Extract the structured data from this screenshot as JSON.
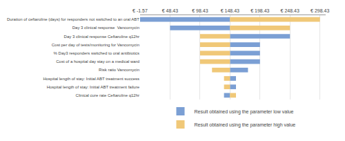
{
  "chart_data": {
    "type": "bar",
    "orientation": "horizontal",
    "categories": [
      "Duration of ceftaroline (days) for responders not switched to an oral ABT",
      "Day 3 clinical response  Vancomycin",
      "Day 3 clinical response Ceftaroline q12hr",
      "Cost per day of tests/monitoring for Vancomycin",
      "% Day3 responders switched to oral antibiotics",
      "Cost of a hospital day stay on a medical ward",
      "Risk ratio Vancomycin",
      "Hospital length of stay: Initial ABT treatment success",
      "Hospital length of stay: Initial ABT treatment failure",
      "Clinical cure rate Ceftaroline q12hr"
    ],
    "series": [
      {
        "name": "Result obtained using the parameter low value",
        "color": "#7b9fd4",
        "base": [
          -1.57,
          48.43,
          148.43,
          148.43,
          148.43,
          148.43,
          148.43,
          148.43,
          148.43,
          138.43
        ],
        "values": [
          150.0,
          100.0,
          100.0,
          50.0,
          50.0,
          50.0,
          30.0,
          10.0,
          10.0,
          10.0
        ]
      },
      {
        "name": "Result obtained using the parameter high value",
        "color": "#f0c878",
        "base": [
          148.43,
          148.43,
          98.43,
          98.43,
          98.43,
          98.43,
          118.43,
          138.43,
          138.43,
          148.43
        ],
        "values": [
          150.0,
          100.0,
          50.0,
          50.0,
          50.0,
          50.0,
          30.0,
          10.0,
          10.0,
          10.0
        ]
      }
    ],
    "xlim": [
      -1.57,
      308
    ],
    "xticks": [
      {
        "value": -1.57,
        "label": "€ -1.57"
      },
      {
        "value": 48.43,
        "label": "€ 48.43"
      },
      {
        "value": 98.43,
        "label": "€ 98.43"
      },
      {
        "value": 148.43,
        "label": "€ 148.43"
      },
      {
        "value": 198.43,
        "label": "€ 198.43"
      },
      {
        "value": 248.43,
        "label": "€ 248.43"
      },
      {
        "value": 298.43,
        "label": "€ 298.43"
      }
    ],
    "grid": true,
    "legend": "bottom"
  }
}
